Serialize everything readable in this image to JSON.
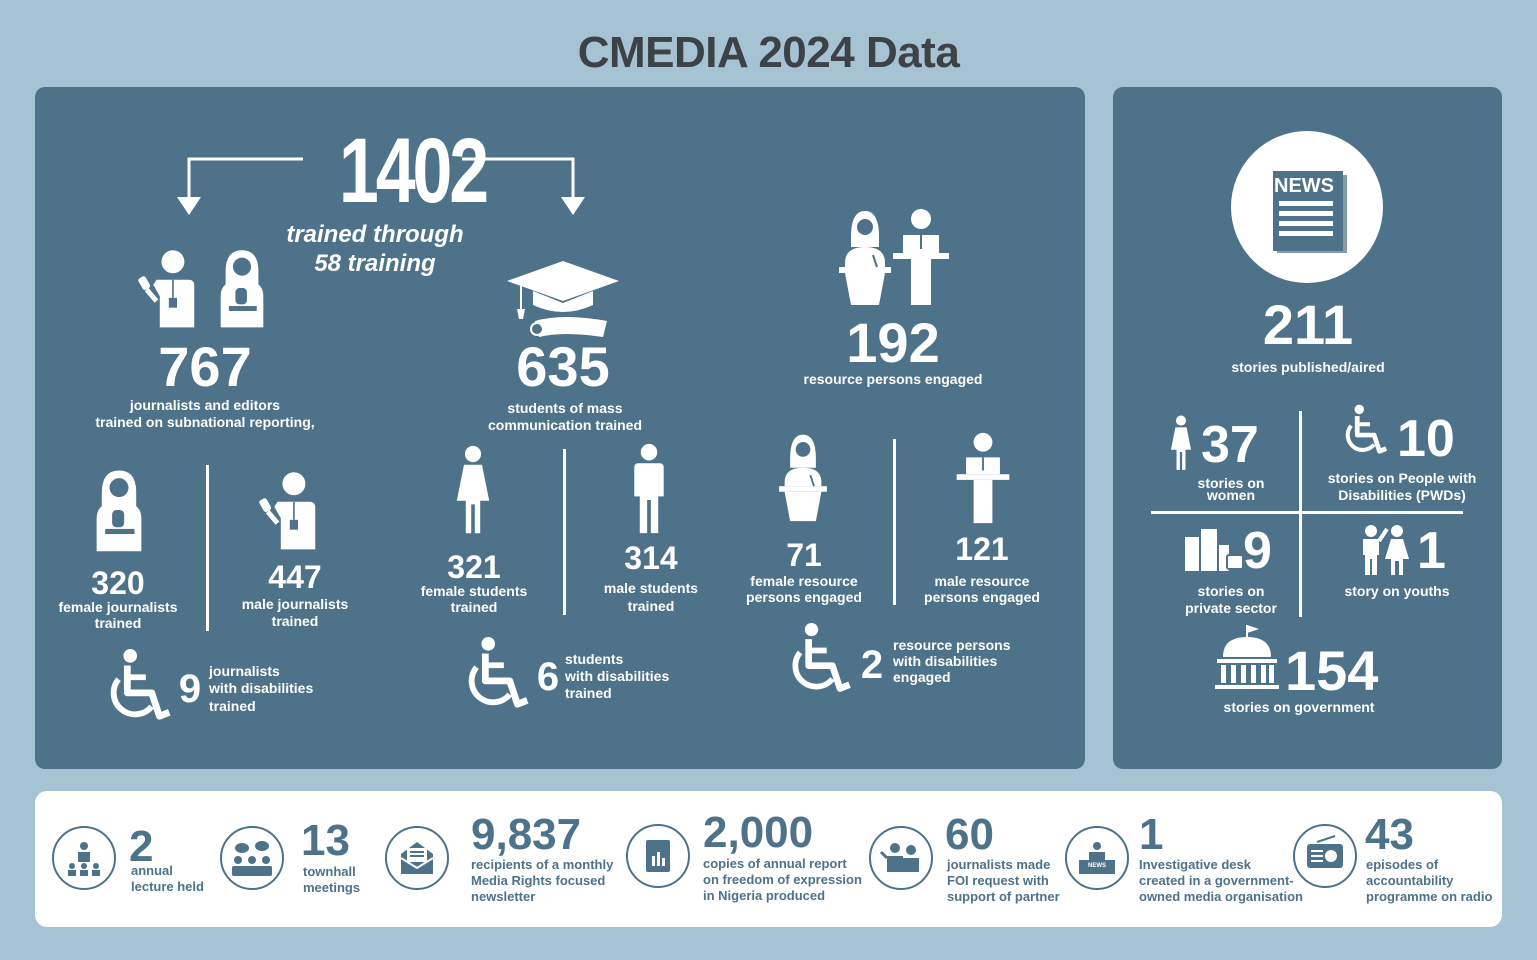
{
  "title": "CMEDIA 2024 Data",
  "colors": {
    "background": "#a6c3d3",
    "panel": "#4e7289",
    "title": "#3d4247",
    "white": "#ffffff"
  },
  "training": {
    "total": "1402",
    "total_line1": "trained through",
    "total_line2": "58 training",
    "journalists": {
      "count": "767",
      "label_line1": "journalists and editors",
      "label_line2": "trained on subnational reporting,",
      "female_count": "320",
      "female_line1": "female journalists",
      "female_line2": "trained",
      "male_count": "447",
      "male_line1": "male journalists",
      "male_line2": "trained",
      "disabled_count": "9",
      "disabled_line1": "journalists",
      "disabled_line2": "with disabilities",
      "disabled_line3": "trained"
    },
    "students": {
      "count": "635",
      "label_line1": "students of mass",
      "label_line2": "communication trained",
      "female_count": "321",
      "female_line1": "female students",
      "female_line2": "trained",
      "male_count": "314",
      "male_line1": "male students",
      "male_line2": "trained",
      "disabled_count": "6",
      "disabled_line1": "students",
      "disabled_line2": "with disabilities",
      "disabled_line3": "trained"
    },
    "resource_persons": {
      "count": "192",
      "label": "resource persons engaged",
      "female_count": "71",
      "female_line1": "female resource",
      "female_line2": "persons engaged",
      "male_count": "121",
      "male_line1": "male resource",
      "male_line2": "persons engaged",
      "disabled_count": "2",
      "disabled_line1": "resource persons",
      "disabled_line2": "with disabilities",
      "disabled_line3": "engaged"
    }
  },
  "stories": {
    "news_badge": "NEWS",
    "count": "211",
    "label": "stories published/aired",
    "women_count": "37",
    "women_line1": "stories on",
    "women_line2": "women",
    "pwd_count": "10",
    "pwd_line1": "stories on People with",
    "pwd_line2": "Disabilities (PWDs)",
    "private_count": "9",
    "private_line1": "stories on",
    "private_line2": "private sector",
    "youth_count": "1",
    "youth_label": "story on youths",
    "gov_count": "154",
    "gov_label": "stories on government"
  },
  "bottom": [
    {
      "icon": "lecture-icon",
      "number": "2",
      "line1": "annual",
      "line2": "lecture held",
      "line3": ""
    },
    {
      "icon": "townhall-icon",
      "number": "13",
      "line1": "townhall",
      "line2": "meetings",
      "line3": ""
    },
    {
      "icon": "newsletter-icon",
      "number": "9,837",
      "line1": "recipients of a monthly",
      "line2": "Media Rights focused",
      "line3": "newsletter"
    },
    {
      "icon": "report-icon",
      "number": "2,000",
      "line1": "copies of annual report",
      "line2": "on freedom of expression",
      "line3": "in Nigeria produced"
    },
    {
      "icon": "foi-icon",
      "number": "60",
      "line1": "journalists made",
      "line2": "FOI request with",
      "line3": "support of partner"
    },
    {
      "icon": "news-desk-icon",
      "number": "1",
      "line1": "Investigative desk",
      "line2": "created in a government-",
      "line3": "owned media organisation",
      "badge": "NEWS"
    },
    {
      "icon": "radio-icon",
      "number": "43",
      "line1": "episodes of",
      "line2": "accountability",
      "line3": "programme on radio"
    }
  ]
}
